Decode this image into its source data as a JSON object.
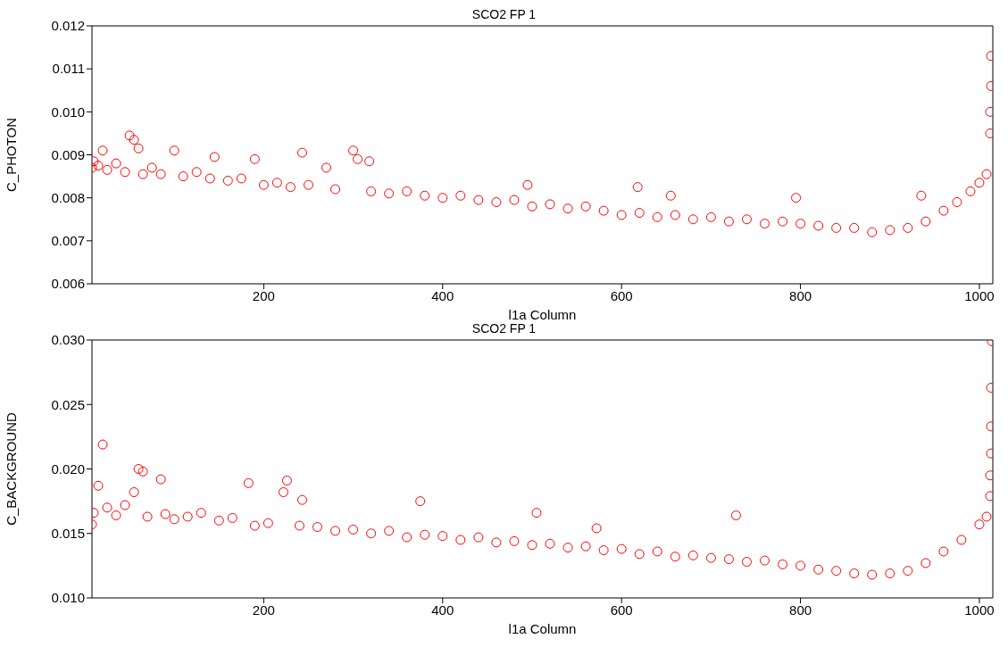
{
  "chart_data": [
    {
      "type": "scatter",
      "title": "SCO2 FP 1",
      "xlabel": "l1a Column",
      "ylabel": "C_PHOTON",
      "color": "#ff0000",
      "marker": "circle",
      "grid": false,
      "legend": false,
      "xlim": [
        8,
        1015
      ],
      "xticks": [
        200,
        400,
        600,
        800,
        1000
      ],
      "ylim": [
        0.006,
        0.012
      ],
      "yticks": [
        {
          "value": 0.006,
          "label": "0.006"
        },
        {
          "value": 0.007,
          "label": "0.007"
        },
        {
          "value": 0.008,
          "label": "0.008"
        },
        {
          "value": 0.009,
          "label": "0.009"
        },
        {
          "value": 0.01,
          "label": "0.010"
        },
        {
          "value": 0.011,
          "label": "0.011"
        },
        {
          "value": 0.012,
          "label": "0.012"
        }
      ],
      "x": [
        8,
        10,
        15,
        20,
        25,
        35,
        45,
        50,
        55,
        60,
        65,
        75,
        85,
        100,
        110,
        125,
        140,
        145,
        160,
        175,
        190,
        200,
        215,
        230,
        243,
        250,
        270,
        280,
        300,
        305,
        318,
        320,
        340,
        360,
        380,
        400,
        420,
        440,
        460,
        480,
        495,
        500,
        520,
        540,
        560,
        580,
        600,
        618,
        620,
        640,
        655,
        660,
        680,
        700,
        720,
        740,
        760,
        780,
        795,
        800,
        820,
        840,
        860,
        880,
        900,
        920,
        935,
        940,
        960,
        975,
        990,
        1000,
        1008,
        1012,
        1012,
        1013,
        1013
      ],
      "values": [
        0.0087,
        0.00885,
        0.00875,
        0.0091,
        0.00865,
        0.0088,
        0.0086,
        0.00945,
        0.00935,
        0.00915,
        0.00855,
        0.0087,
        0.00855,
        0.0091,
        0.0085,
        0.0086,
        0.00845,
        0.00895,
        0.0084,
        0.00845,
        0.0089,
        0.0083,
        0.00835,
        0.00825,
        0.00905,
        0.0083,
        0.0087,
        0.0082,
        0.0091,
        0.0089,
        0.00885,
        0.00815,
        0.0081,
        0.00815,
        0.00805,
        0.008,
        0.00805,
        0.00795,
        0.0079,
        0.00795,
        0.0083,
        0.0078,
        0.00785,
        0.00775,
        0.0078,
        0.0077,
        0.0076,
        0.00825,
        0.00765,
        0.00755,
        0.00805,
        0.0076,
        0.0075,
        0.00755,
        0.00745,
        0.0075,
        0.0074,
        0.00745,
        0.008,
        0.0074,
        0.00735,
        0.0073,
        0.0073,
        0.0072,
        0.00725,
        0.0073,
        0.00805,
        0.00745,
        0.0077,
        0.0079,
        0.00815,
        0.00835,
        0.00855,
        0.0095,
        0.01,
        0.0106,
        0.0113
      ]
    },
    {
      "type": "scatter",
      "title": "SCO2 FP 1",
      "xlabel": "l1a Column",
      "ylabel": "C_BACKGROUND",
      "color": "#ff0000",
      "marker": "circle",
      "grid": false,
      "legend": false,
      "xlim": [
        8,
        1015
      ],
      "xticks": [
        200,
        400,
        600,
        800,
        1000
      ],
      "ylim": [
        0.01,
        0.03
      ],
      "yticks": [
        {
          "value": 0.01,
          "label": "0.010"
        },
        {
          "value": 0.015,
          "label": "0.015"
        },
        {
          "value": 0.02,
          "label": "0.020"
        },
        {
          "value": 0.025,
          "label": "0.025"
        },
        {
          "value": 0.03,
          "label": "0.030"
        }
      ],
      "x": [
        8,
        10,
        15,
        20,
        25,
        35,
        45,
        55,
        60,
        65,
        70,
        85,
        90,
        100,
        115,
        130,
        150,
        165,
        183,
        190,
        205,
        222,
        226,
        240,
        243,
        260,
        280,
        300,
        320,
        340,
        360,
        375,
        380,
        400,
        420,
        440,
        460,
        480,
        500,
        505,
        520,
        540,
        560,
        572,
        580,
        600,
        620,
        640,
        660,
        680,
        700,
        720,
        728,
        740,
        760,
        780,
        800,
        820,
        840,
        860,
        880,
        900,
        920,
        940,
        960,
        980,
        1000,
        1008,
        1012,
        1012,
        1013,
        1013,
        1013,
        1014
      ],
      "values": [
        0.0157,
        0.0166,
        0.0187,
        0.0219,
        0.017,
        0.0164,
        0.0172,
        0.0182,
        0.02,
        0.0198,
        0.0163,
        0.0192,
        0.0165,
        0.0161,
        0.0163,
        0.0166,
        0.016,
        0.0162,
        0.0189,
        0.0156,
        0.0158,
        0.0182,
        0.0191,
        0.0156,
        0.0176,
        0.0155,
        0.0152,
        0.0153,
        0.015,
        0.0152,
        0.0147,
        0.0175,
        0.0149,
        0.0148,
        0.0145,
        0.0147,
        0.0143,
        0.0144,
        0.0141,
        0.0166,
        0.0142,
        0.0139,
        0.014,
        0.0154,
        0.0137,
        0.0138,
        0.0134,
        0.0136,
        0.0132,
        0.0133,
        0.0131,
        0.013,
        0.0164,
        0.0128,
        0.0129,
        0.0126,
        0.0125,
        0.0122,
        0.0121,
        0.0119,
        0.0118,
        0.0119,
        0.0121,
        0.0127,
        0.0136,
        0.0145,
        0.0157,
        0.0163,
        0.0179,
        0.0195,
        0.0212,
        0.0233,
        0.0263,
        0.0299
      ]
    }
  ]
}
